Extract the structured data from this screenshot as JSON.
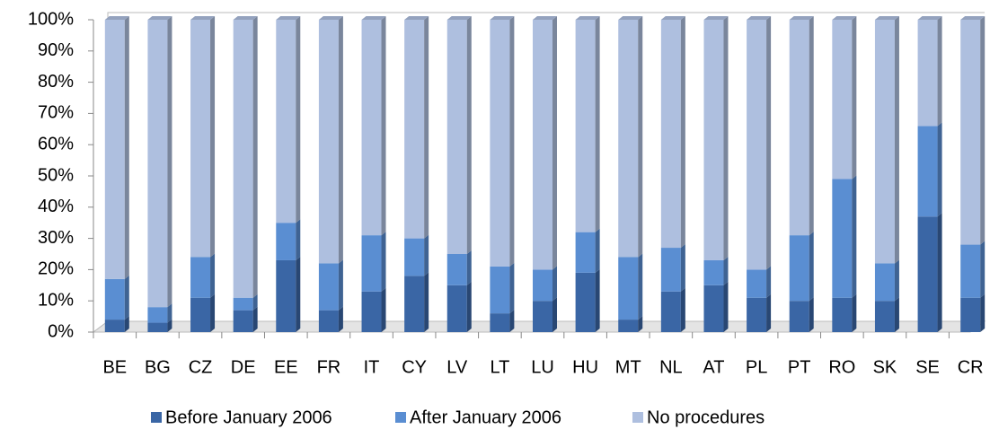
{
  "chart_data": {
    "type": "stacked_bar",
    "categories": [
      "BE",
      "BG",
      "CZ",
      "DE",
      "EE",
      "FR",
      "IT",
      "CY",
      "LV",
      "LT",
      "LU",
      "HU",
      "MT",
      "NL",
      "AT",
      "PL",
      "PT",
      "RO",
      "SK",
      "SE",
      "CR"
    ],
    "series": [
      {
        "name": "Before January 2006",
        "color": "#3a66a5",
        "values": [
          4,
          3,
          11,
          7,
          23,
          7,
          13,
          18,
          15,
          6,
          10,
          19,
          4,
          13,
          15,
          11,
          10,
          11,
          10,
          37,
          11
        ]
      },
      {
        "name": "After January 2006",
        "color": "#5a8ed2",
        "values": [
          13,
          5,
          13,
          4,
          12,
          15,
          18,
          12,
          10,
          15,
          10,
          13,
          20,
          14,
          8,
          9,
          21,
          38,
          12,
          29,
          17
        ]
      },
      {
        "name": "No procedures",
        "color": "#aebfdf",
        "values": [
          83,
          92,
          76,
          89,
          65,
          78,
          69,
          70,
          75,
          79,
          80,
          68,
          76,
          73,
          77,
          80,
          69,
          51,
          78,
          34,
          72
        ]
      }
    ],
    "ylim": [
      0,
      100
    ],
    "yticks": [
      {
        "value": 0,
        "label": "0%"
      },
      {
        "value": 10,
        "label": "10%"
      },
      {
        "value": 20,
        "label": "20%"
      },
      {
        "value": 30,
        "label": "30%"
      },
      {
        "value": 40,
        "label": "40%"
      },
      {
        "value": 50,
        "label": "50%"
      },
      {
        "value": 60,
        "label": "60%"
      },
      {
        "value": 70,
        "label": "70%"
      },
      {
        "value": 80,
        "label": "80%"
      },
      {
        "value": 90,
        "label": "90%"
      },
      {
        "value": 100,
        "label": "100%"
      }
    ],
    "legend": "bottom"
  }
}
